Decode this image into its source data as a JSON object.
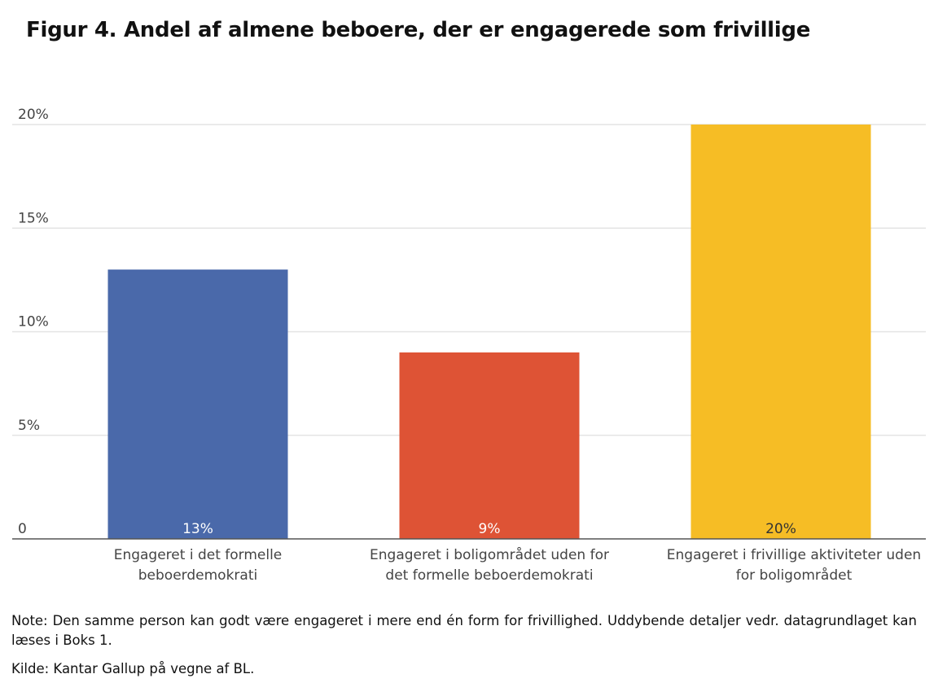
{
  "figure": {
    "title": "Figur 4. Andel af almene beboere, der er engagerede som frivillige",
    "note": "Note: Den samme person kan godt være engageret i mere end én form for frivillighed. Uddybende detaljer vedr. datagrundlaget kan læses i Boks 1.",
    "source": "Kilde: Kantar Gallup på vegne af BL."
  },
  "chart_data": {
    "type": "bar",
    "title": "Figur 4. Andel af almene beboere, der er engagerede som frivillige",
    "xlabel": "",
    "ylabel": "",
    "ylim": [
      0,
      20
    ],
    "yticks": [
      0,
      5,
      10,
      15,
      20
    ],
    "ytick_labels": [
      "0",
      "5%",
      "10%",
      "15%",
      "20%"
    ],
    "grid": true,
    "legend": "none",
    "categories": [
      [
        "Engageret i det formelle",
        "beboerdemokrati"
      ],
      [
        "Engageret i boligområdet uden for",
        "det formelle beboerdemokrati"
      ],
      [
        "Engageret i frivillige aktiviteter uden",
        "for boligområdet"
      ]
    ],
    "values": [
      13,
      9,
      20
    ],
    "data_labels": [
      "13%",
      "9%",
      "20%"
    ],
    "colors": [
      "#4a69aa",
      "#de5335",
      "#f6bd25"
    ],
    "label_colors": [
      "#ffffff",
      "#ffffff",
      "#333333"
    ]
  }
}
